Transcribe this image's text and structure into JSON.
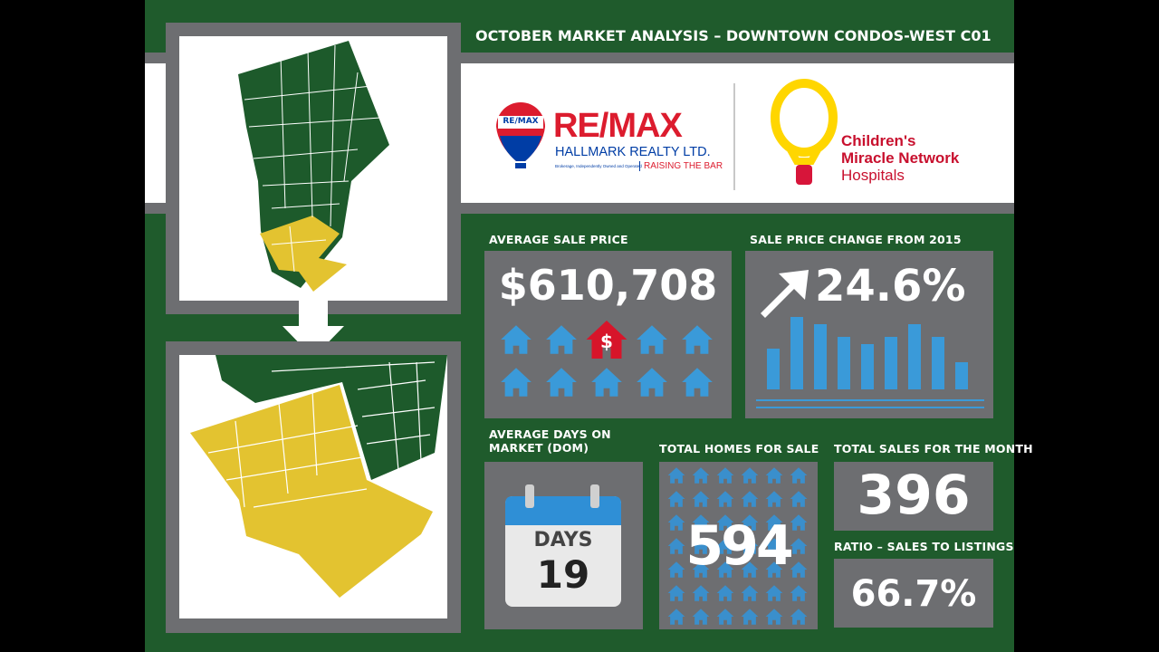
{
  "header": {
    "title": "OCTOBER MARKET ANALYSIS – DOWNTOWN CONDOS-WEST C01"
  },
  "logos": {
    "remax_badge": "RE/MAX",
    "remax": "RE/MAX",
    "remax_subtitle": "HALLMARK REALTY LTD.",
    "remax_note": "Brokerage, Independently Owned and Operated",
    "remax_tagline": "RAISING THE BAR",
    "cmn": [
      "Children's",
      "Miracle Network",
      "Hospitals"
    ]
  },
  "stats": {
    "average_sale_price": {
      "label": "AVERAGE SALE PRICE",
      "value": "$610,708",
      "icon_text": "$"
    },
    "price_change": {
      "label": "SALE PRICE CHANGE FROM 2015",
      "value": "24.6%"
    },
    "days_on_market": {
      "label": "AVERAGE DAYS ON MARKET (DOM)",
      "unit": "DAYS",
      "value": "19"
    },
    "homes_for_sale": {
      "label": "TOTAL HOMES FOR SALE",
      "value": "594"
    },
    "sales": {
      "label": "TOTAL SALES FOR THE MONTH",
      "value": "396"
    },
    "ratio": {
      "label": "RATIO – SALES TO LISTINGS",
      "value": "66.7%"
    }
  }
}
